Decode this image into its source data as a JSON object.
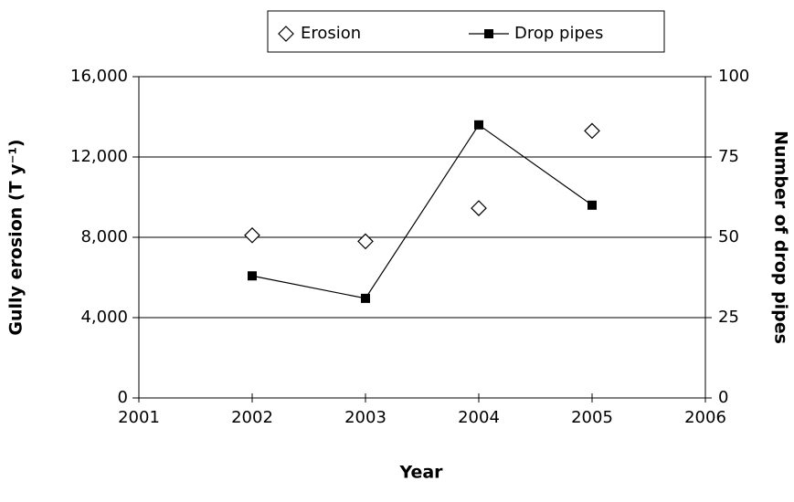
{
  "chart_data": {
    "type": "line",
    "x": [
      2002,
      2003,
      2004,
      2005
    ],
    "xlim": [
      2001,
      2006
    ],
    "xticks": [
      2001,
      2002,
      2003,
      2004,
      2005,
      2006
    ],
    "ylim": [
      0,
      16000
    ],
    "yticks": [
      0,
      {
        "value": 4000,
        "label": "4,000"
      },
      {
        "value": 8000,
        "label": "8,000"
      },
      {
        "value": 12000,
        "label": "12,000"
      },
      {
        "value": 16000,
        "label": "16,000"
      }
    ],
    "y2lim": [
      0,
      100
    ],
    "y2ticks": [
      0,
      25,
      50,
      75,
      100
    ],
    "xlabel": "Year",
    "ylabel": "Gully erosion (T y⁻¹)",
    "y2label": "Number of drop pipes",
    "grid": true,
    "legend": "top",
    "series": [
      {
        "name": "Erosion",
        "color": "#000000",
        "marker": "diamond",
        "line": false,
        "values": [
          8100,
          7800,
          9450,
          13300
        ]
      },
      {
        "name": "Drop pipes",
        "color": "#000000",
        "marker": "square",
        "line": true,
        "axis": "y2",
        "values": [
          38,
          31,
          85,
          60
        ]
      }
    ]
  }
}
